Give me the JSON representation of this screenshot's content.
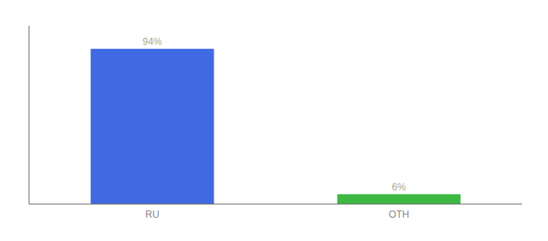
{
  "chart_data": {
    "type": "bar",
    "categories": [
      "RU",
      "OTH"
    ],
    "values": [
      94,
      6
    ],
    "value_labels": [
      "94%",
      "6%"
    ],
    "colors": [
      "#4169e1",
      "#3cb843"
    ],
    "ylim": [
      0,
      108
    ],
    "data_labels": true,
    "tick_labels": "x",
    "grid": false
  }
}
